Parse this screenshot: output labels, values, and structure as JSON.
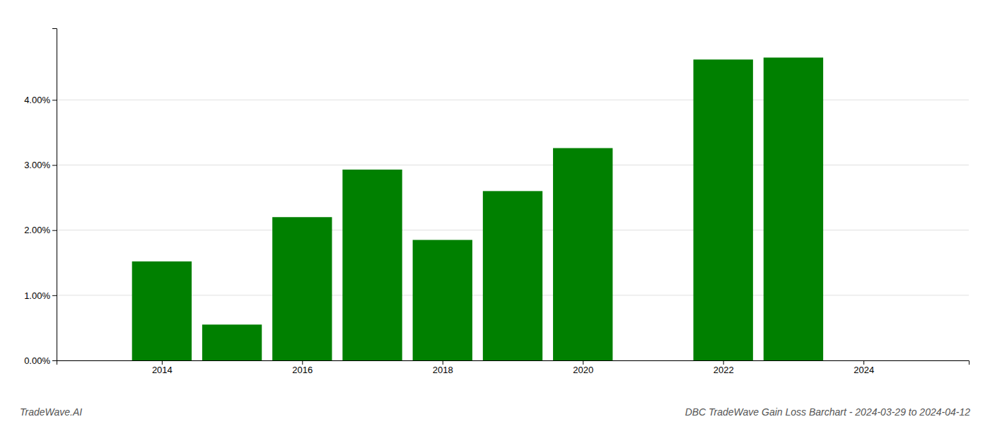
{
  "chart_data": {
    "type": "bar",
    "title": "DBC TradeWave Gain Loss Barchart - 2024-03-29 to 2024-04-12",
    "annotations": [
      "TradeWave.AI"
    ],
    "x": [
      2014,
      2015,
      2016,
      2017,
      2018,
      2019,
      2020,
      2022,
      2023
    ],
    "values": [
      0.0152,
      0.0055,
      0.022,
      0.0293,
      0.0185,
      0.026,
      0.0326,
      0.0462,
      0.0465
    ],
    "color": "#008000",
    "xlim": [
      2012.5,
      2025.5
    ],
    "xticks": [
      2014,
      2016,
      2018,
      2020,
      2022,
      2024
    ],
    "ylim": [
      0,
      0.051
    ],
    "yticks": [
      {
        "value": 0.0,
        "label": "0.00%"
      },
      {
        "value": 0.01,
        "label": "1.00%"
      },
      {
        "value": 0.02,
        "label": "2.00%"
      },
      {
        "value": 0.03,
        "label": "3.00%"
      },
      {
        "value": 0.04,
        "label": "4.00%"
      }
    ],
    "grid": true
  }
}
